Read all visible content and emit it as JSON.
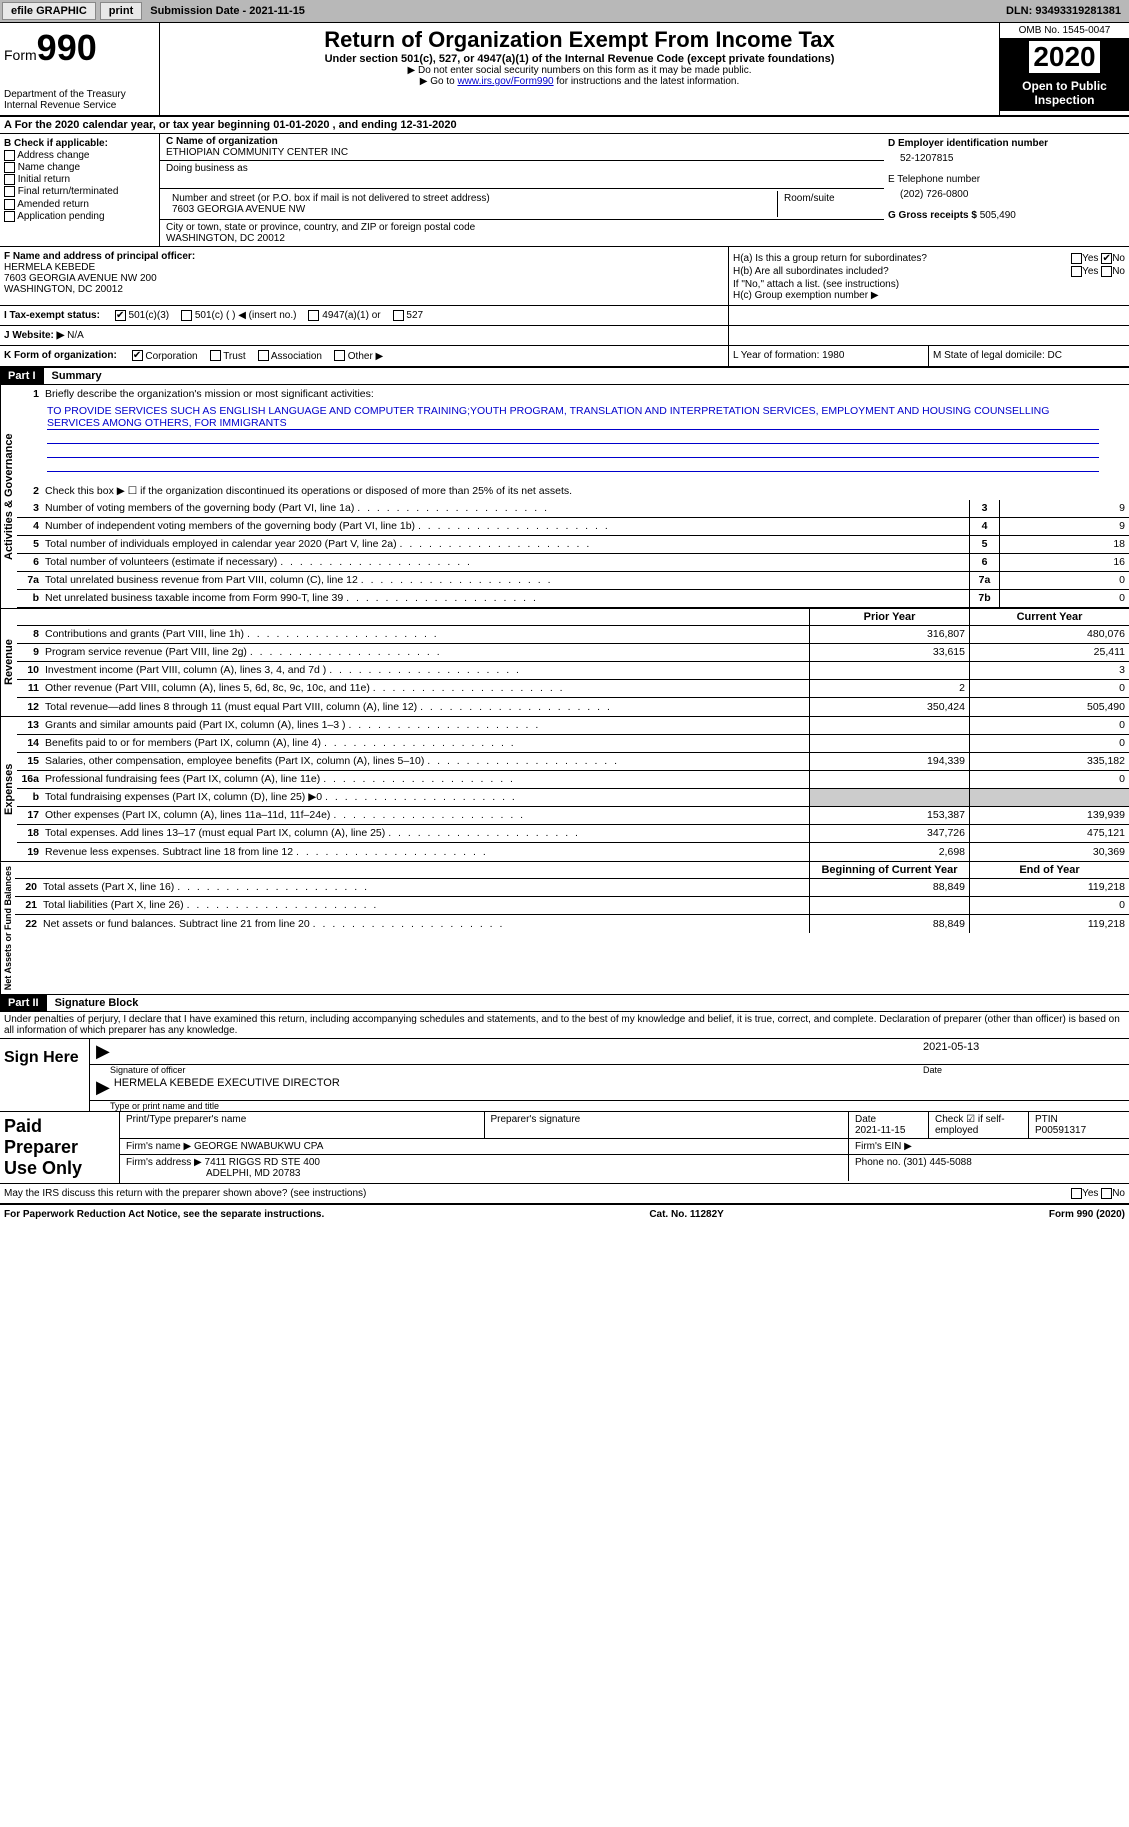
{
  "topbar": {
    "efile_label": "efile GRAPHIC",
    "print_label": "print",
    "submission_label": "Submission Date - 2021-11-15",
    "dln": "DLN: 93493319281381"
  },
  "header": {
    "form_label": "Form",
    "form_number": "990",
    "dept": "Department of the Treasury\nInternal Revenue Service",
    "title": "Return of Organization Exempt From Income Tax",
    "subtitle": "Under section 501(c), 527, or 4947(a)(1) of the Internal Revenue Code (except private foundations)",
    "note1": "▶ Do not enter social security numbers on this form as it may be made public.",
    "note2_pre": "▶ Go to ",
    "note2_link": "www.irs.gov/Form990",
    "note2_post": " for instructions and the latest information.",
    "omb": "OMB No. 1545-0047",
    "year": "2020",
    "inspect": "Open to Public Inspection"
  },
  "row_a": "A For the 2020 calendar year, or tax year beginning 01-01-2020   , and ending 12-31-2020",
  "section_b": {
    "label": "B Check if applicable:",
    "opts": [
      "Address change",
      "Name change",
      "Initial return",
      "Final return/terminated",
      "Amended return",
      "Application pending"
    ]
  },
  "section_c": {
    "name_label": "C Name of organization",
    "name": "ETHIOPIAN COMMUNITY CENTER INC",
    "dba_label": "Doing business as",
    "street_label": "Number and street (or P.O. box if mail is not delivered to street address)",
    "room_label": "Room/suite",
    "street": "7603 GEORGIA AVENUE NW",
    "city_label": "City or town, state or province, country, and ZIP or foreign postal code",
    "city": "WASHINGTON, DC  20012"
  },
  "section_d": {
    "ein_label": "D Employer identification number",
    "ein": "52-1207815",
    "phone_label": "E Telephone number",
    "phone": "(202) 726-0800",
    "receipts_label": "G Gross receipts $",
    "receipts": "505,490"
  },
  "section_f": {
    "label": "F  Name and address of principal officer:",
    "name": "HERMELA KEBEDE",
    "addr1": "7603 GEORGIA AVENUE NW 200",
    "addr2": "WASHINGTON, DC  20012"
  },
  "section_h": {
    "ha": "H(a)  Is this a group return for subordinates?",
    "hb": "H(b)  Are all subordinates included?",
    "hb_note": "If \"No,\" attach a list. (see instructions)",
    "hc": "H(c)  Group exemption number ▶",
    "yes": "Yes",
    "no": "No"
  },
  "row_i": {
    "label": "I   Tax-exempt status:",
    "opts": [
      "501(c)(3)",
      "501(c) (  ) ◀ (insert no.)",
      "4947(a)(1) or",
      "527"
    ]
  },
  "row_j": {
    "label": "J   Website: ▶",
    "value": "N/A"
  },
  "row_k": {
    "label": "K Form of organization:",
    "opts": [
      "Corporation",
      "Trust",
      "Association",
      "Other ▶"
    ],
    "l": "L Year of formation: 1980",
    "m": "M State of legal domicile: DC"
  },
  "part1": {
    "hdr": "Part I",
    "title": "Summary",
    "q1_label": "Briefly describe the organization's mission or most significant activities:",
    "mission": "TO PROVIDE SERVICES SUCH AS ENGLISH LANGUAGE AND COMPUTER TRAINING;YOUTH PROGRAM, TRANSLATION AND INTERPRETATION SERVICES, EMPLOYMENT AND HOUSING COUNSELLING SERVICES AMONG OTHERS, FOR IMMIGRANTS",
    "q2": "Check this box ▶ ☐  if the organization discontinued its operations or disposed of more than 25% of its net assets.",
    "governance_label": "Activities & Governance",
    "revenue_label": "Revenue",
    "expenses_label": "Expenses",
    "netassets_label": "Net Assets or Fund Balances",
    "prior_year": "Prior Year",
    "current_year": "Current Year",
    "begin_year": "Beginning of Current Year",
    "end_year": "End of Year",
    "lines_gov": [
      {
        "n": "3",
        "t": "Number of voting members of the governing body (Part VI, line 1a)",
        "box": "3",
        "v": "9"
      },
      {
        "n": "4",
        "t": "Number of independent voting members of the governing body (Part VI, line 1b)",
        "box": "4",
        "v": "9"
      },
      {
        "n": "5",
        "t": "Total number of individuals employed in calendar year 2020 (Part V, line 2a)",
        "box": "5",
        "v": "18"
      },
      {
        "n": "6",
        "t": "Total number of volunteers (estimate if necessary)",
        "box": "6",
        "v": "16"
      },
      {
        "n": "7a",
        "t": "Total unrelated business revenue from Part VIII, column (C), line 12",
        "box": "7a",
        "v": "0"
      },
      {
        "n": "b",
        "t": "Net unrelated business taxable income from Form 990-T, line 39",
        "box": "7b",
        "v": "0"
      }
    ],
    "lines_rev": [
      {
        "n": "8",
        "t": "Contributions and grants (Part VIII, line 1h)",
        "py": "316,807",
        "cy": "480,076"
      },
      {
        "n": "9",
        "t": "Program service revenue (Part VIII, line 2g)",
        "py": "33,615",
        "cy": "25,411"
      },
      {
        "n": "10",
        "t": "Investment income (Part VIII, column (A), lines 3, 4, and 7d )",
        "py": "",
        "cy": "3"
      },
      {
        "n": "11",
        "t": "Other revenue (Part VIII, column (A), lines 5, 6d, 8c, 9c, 10c, and 11e)",
        "py": "2",
        "cy": "0"
      },
      {
        "n": "12",
        "t": "Total revenue—add lines 8 through 11 (must equal Part VIII, column (A), line 12)",
        "py": "350,424",
        "cy": "505,490"
      }
    ],
    "lines_exp": [
      {
        "n": "13",
        "t": "Grants and similar amounts paid (Part IX, column (A), lines 1–3 )",
        "py": "",
        "cy": "0"
      },
      {
        "n": "14",
        "t": "Benefits paid to or for members (Part IX, column (A), line 4)",
        "py": "",
        "cy": "0"
      },
      {
        "n": "15",
        "t": "Salaries, other compensation, employee benefits (Part IX, column (A), lines 5–10)",
        "py": "194,339",
        "cy": "335,182"
      },
      {
        "n": "16a",
        "t": "Professional fundraising fees (Part IX, column (A), line 11e)",
        "py": "",
        "cy": "0"
      },
      {
        "n": "b",
        "t": "Total fundraising expenses (Part IX, column (D), line 25) ▶0",
        "py": "SHADE",
        "cy": "SHADE"
      },
      {
        "n": "17",
        "t": "Other expenses (Part IX, column (A), lines 11a–11d, 11f–24e)",
        "py": "153,387",
        "cy": "139,939"
      },
      {
        "n": "18",
        "t": "Total expenses. Add lines 13–17 (must equal Part IX, column (A), line 25)",
        "py": "347,726",
        "cy": "475,121"
      },
      {
        "n": "19",
        "t": "Revenue less expenses. Subtract line 18 from line 12",
        "py": "2,698",
        "cy": "30,369"
      }
    ],
    "lines_net": [
      {
        "n": "20",
        "t": "Total assets (Part X, line 16)",
        "py": "88,849",
        "cy": "119,218"
      },
      {
        "n": "21",
        "t": "Total liabilities (Part X, line 26)",
        "py": "",
        "cy": "0"
      },
      {
        "n": "22",
        "t": "Net assets or fund balances. Subtract line 21 from line 20",
        "py": "88,849",
        "cy": "119,218"
      }
    ]
  },
  "part2": {
    "hdr": "Part II",
    "title": "Signature Block",
    "penalty": "Under penalties of perjury, I declare that I have examined this return, including accompanying schedules and statements, and to the best of my knowledge and belief, it is true, correct, and complete. Declaration of preparer (other than officer) is based on all information of which preparer has any knowledge.",
    "sign_here": "Sign Here",
    "sig_officer": "Signature of officer",
    "sig_date": "2021-05-13",
    "date_label": "Date",
    "officer_name": "HERMELA KEBEDE EXECUTIVE DIRECTOR",
    "type_name": "Type or print name and title",
    "paid_prep": "Paid Preparer Use Only",
    "prep_name_label": "Print/Type preparer's name",
    "prep_sig_label": "Preparer's signature",
    "prep_date": "2021-11-15",
    "check_self": "Check ☑ if self-employed",
    "ptin_label": "PTIN",
    "ptin": "P00591317",
    "firm_name_label": "Firm's name   ▶",
    "firm_name": "GEORGE NWABUKWU CPA",
    "firm_ein_label": "Firm's EIN ▶",
    "firm_addr_label": "Firm's address ▶",
    "firm_addr": "7411 RIGGS RD STE 400",
    "firm_addr2": "ADELPHI, MD  20783",
    "firm_phone_label": "Phone no.",
    "firm_phone": "(301) 445-5088",
    "discuss": "May the IRS discuss this return with the preparer shown above? (see instructions)"
  },
  "footer": {
    "pra": "For Paperwork Reduction Act Notice, see the separate instructions.",
    "cat": "Cat. No. 11282Y",
    "form": "Form 990 (2020)"
  }
}
